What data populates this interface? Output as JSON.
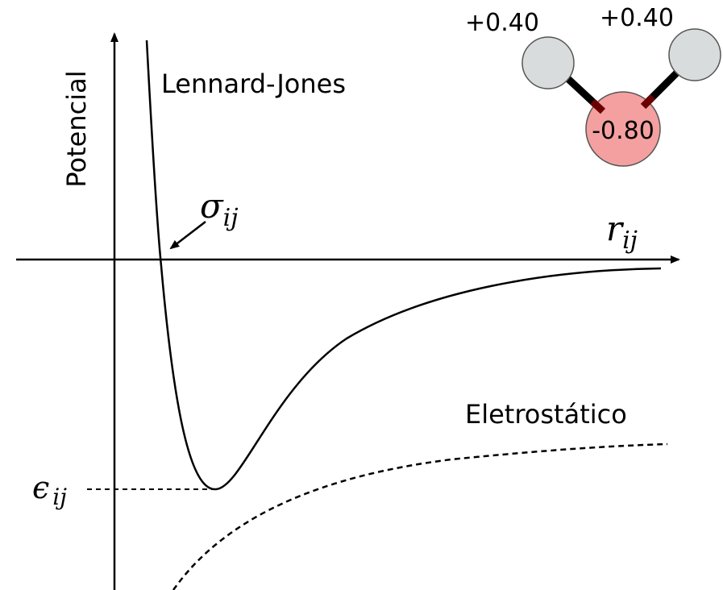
{
  "axes": {
    "y_label": "Potencial",
    "x_label": {
      "symbol": "r",
      "subscript": "ij"
    }
  },
  "curves": {
    "lennard_jones": "Lennard-Jones",
    "electrostatic": "Eletrostático"
  },
  "annotations": {
    "sigma": {
      "symbol": "σ",
      "subscript": "ij"
    },
    "epsilon": {
      "symbol": "ϵ",
      "subscript": "ij"
    }
  },
  "molecule": {
    "hydrogen_left": "+0.40",
    "hydrogen_right": "+0.40",
    "oxygen": "-0.80"
  }
}
